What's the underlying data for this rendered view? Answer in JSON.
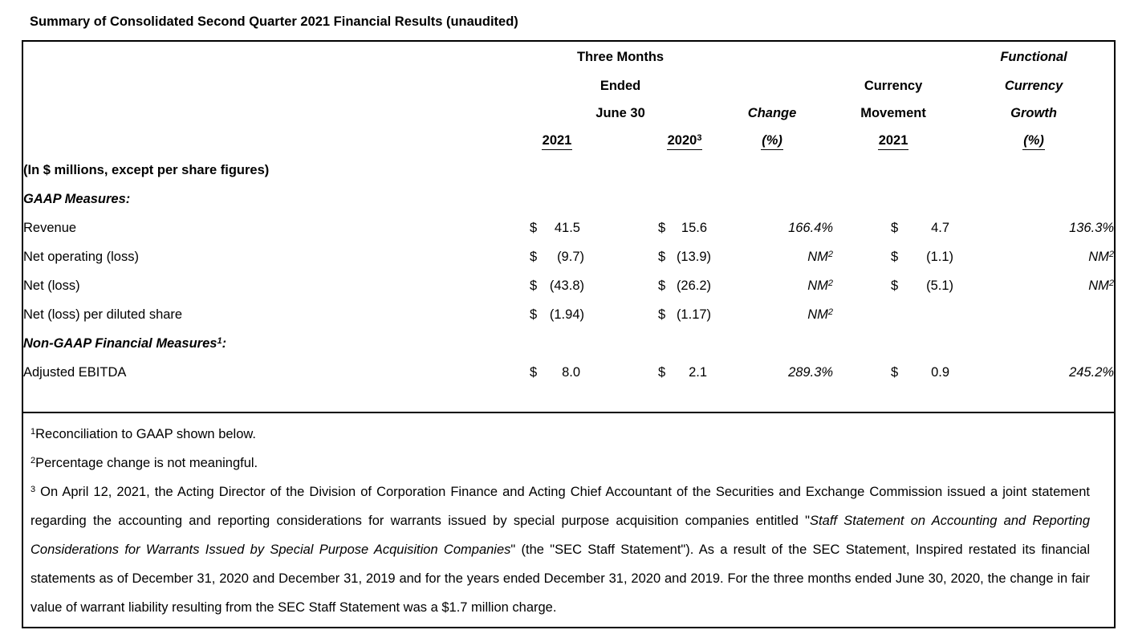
{
  "page_title": "Summary of Consolidated Second Quarter 2021 Financial Results (unaudited)",
  "colors": {
    "text": "#000000",
    "background": "#ffffff",
    "border": "#000000"
  },
  "table": {
    "header": {
      "period_line1": "Three Months",
      "period_line2": "Ended",
      "period_line3": "June 30",
      "col_2021": "2021",
      "col_2020": "2020",
      "col_2020_sup": "3",
      "change_line1": "Change",
      "change_line2": "(%)",
      "movement_line1": "Currency",
      "movement_line2": "Movement",
      "movement_col": "2021",
      "growth_line1": "Functional",
      "growth_line2": "Currency",
      "growth_line3": "Growth",
      "growth_line4": "(%)"
    },
    "rows": [
      {
        "label": "(In $ millions, except per share figures)"
      },
      {
        "label": "GAAP Measures:"
      },
      {
        "label": "Revenue",
        "d1": "$",
        "v1": "41.5",
        "d2": "$",
        "v2": "15.6",
        "change": "166.4%",
        "change_sup": "",
        "d3": "$",
        "v3": "4.7",
        "growth": "136.3%",
        "growth_sup": ""
      },
      {
        "label": "Net operating (loss)",
        "d1": "$",
        "v1": "(9.7)",
        "d2": "$",
        "v2": "(13.9)",
        "change": "NM",
        "change_sup": "2",
        "d3": "$",
        "v3": "(1.1)",
        "growth": "NM",
        "growth_sup": "2"
      },
      {
        "label": "Net (loss)",
        "d1": "$",
        "v1": "(43.8)",
        "d2": "$",
        "v2": "(26.2)",
        "change": "NM",
        "change_sup": "2",
        "d3": "$",
        "v3": "(5.1)",
        "growth": "NM",
        "growth_sup": "2"
      },
      {
        "label": "Net (loss) per diluted share",
        "d1": "$",
        "v1": "(1.94)",
        "d2": "$",
        "v2": "(1.17)",
        "change": "NM",
        "change_sup": "2",
        "d3": "",
        "v3": "",
        "growth": "",
        "growth_sup": ""
      },
      {
        "label": "Non-GAAP Financial Measures",
        "label_sup": "1",
        "label_suffix": ":"
      },
      {
        "label": "Adjusted EBITDA",
        "d1": "$",
        "v1": "8.0",
        "d2": "$",
        "v2": "2.1",
        "change": "289.3%",
        "change_sup": "",
        "d3": "$",
        "v3": "0.9",
        "growth": "245.2%",
        "growth_sup": ""
      }
    ]
  },
  "footnotes": [
    {
      "sup": "1",
      "text": "Reconciliation to GAAP shown below."
    },
    {
      "sup": "2",
      "text": "Percentage change is not meaningful."
    },
    {
      "sup": "3",
      "text_part1": " On April 12, 2021, the Acting Director of the Division of Corporation Finance and Acting Chief Accountant of the Securities and Exchange Commission issued a joint statement regarding the accounting and reporting considerations for warrants issued by special purpose acquisition companies entitled \"",
      "text_italic": "Staff Statement on Accounting and Reporting Considerations for Warrants Issued by Special Purpose Acquisition Companies",
      "text_part2": "\" (the \"SEC Staff Statement\"). As a result of the SEC Statement, Inspired restated its financial statements as of December 31, 2020 and December 31, 2019 and for the years ended December 31, 2020 and 2019. For the three months ended June 30, 2020, the change in fair value of warrant liability resulting from the SEC Staff Statement was a $1.7 million charge."
    }
  ]
}
